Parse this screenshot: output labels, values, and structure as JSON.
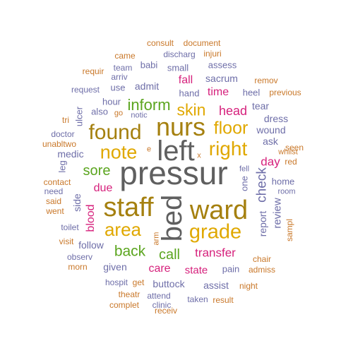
{
  "palette": {
    "gray": "#5f5f5f",
    "brown": "#a5800f",
    "gold": "#e0a800",
    "green": "#5ba51f",
    "magenta": "#d6217c",
    "slate": "#6e6ea8",
    "orange": "#c9782a"
  },
  "words": [
    {
      "text": "pressur",
      "color": "gray"
    },
    {
      "text": "left",
      "color": "gray"
    },
    {
      "text": "bed",
      "color": "gray"
    },
    {
      "text": "staff",
      "color": "brown"
    },
    {
      "text": "ward",
      "color": "brown"
    },
    {
      "text": "nurs",
      "color": "brown"
    },
    {
      "text": "found",
      "color": "brown"
    },
    {
      "text": "grade",
      "color": "gold"
    },
    {
      "text": "right",
      "color": "gold"
    },
    {
      "text": "note",
      "color": "gold"
    },
    {
      "text": "area",
      "color": "gold"
    },
    {
      "text": "floor",
      "color": "gold"
    },
    {
      "text": "skin",
      "color": "gold"
    },
    {
      "text": "inform",
      "color": "green"
    },
    {
      "text": "sore",
      "color": "green"
    },
    {
      "text": "back",
      "color": "green"
    },
    {
      "text": "call",
      "color": "green"
    },
    {
      "text": "check",
      "color": "slate"
    },
    {
      "text": "head",
      "color": "magenta"
    },
    {
      "text": "time",
      "color": "magenta"
    },
    {
      "text": "fall",
      "color": "magenta"
    },
    {
      "text": "day",
      "color": "magenta"
    },
    {
      "text": "due",
      "color": "magenta"
    },
    {
      "text": "blood",
      "color": "magenta"
    },
    {
      "text": "transfer",
      "color": "magenta"
    },
    {
      "text": "care",
      "color": "magenta"
    },
    {
      "text": "state",
      "color": "magenta"
    },
    {
      "text": "review",
      "color": "slate"
    },
    {
      "text": "report",
      "color": "slate"
    },
    {
      "text": "sacrum",
      "color": "slate"
    },
    {
      "text": "admit",
      "color": "slate"
    },
    {
      "text": "hand",
      "color": "slate"
    },
    {
      "text": "wound",
      "color": "slate"
    },
    {
      "text": "ask",
      "color": "slate"
    },
    {
      "text": "dress",
      "color": "slate"
    },
    {
      "text": "heel",
      "color": "slate"
    },
    {
      "text": "tear",
      "color": "slate"
    },
    {
      "text": "assess",
      "color": "slate"
    },
    {
      "text": "small",
      "color": "slate"
    },
    {
      "text": "babi",
      "color": "slate"
    },
    {
      "text": "use",
      "color": "slate"
    },
    {
      "text": "hour",
      "color": "slate"
    },
    {
      "text": "also",
      "color": "slate"
    },
    {
      "text": "ulcer",
      "color": "slate"
    },
    {
      "text": "medic",
      "color": "slate"
    },
    {
      "text": "leg",
      "color": "slate"
    },
    {
      "text": "side",
      "color": "slate"
    },
    {
      "text": "follow",
      "color": "slate"
    },
    {
      "text": "given",
      "color": "slate"
    },
    {
      "text": "buttock",
      "color": "slate"
    },
    {
      "text": "assist",
      "color": "slate"
    },
    {
      "text": "pain",
      "color": "slate"
    },
    {
      "text": "home",
      "color": "slate"
    },
    {
      "text": "one",
      "color": "slate"
    },
    {
      "text": "team",
      "color": "slate"
    },
    {
      "text": "discharg",
      "color": "slate"
    },
    {
      "text": "request",
      "color": "slate"
    },
    {
      "text": "arriv",
      "color": "slate"
    },
    {
      "text": "notic",
      "color": "slate"
    },
    {
      "text": "doctor",
      "color": "slate"
    },
    {
      "text": "need",
      "color": "slate"
    },
    {
      "text": "toilet",
      "color": "slate"
    },
    {
      "text": "observ",
      "color": "slate"
    },
    {
      "text": "hospit",
      "color": "slate"
    },
    {
      "text": "attend",
      "color": "slate"
    },
    {
      "text": "taken",
      "color": "slate"
    },
    {
      "text": "clinic",
      "color": "slate"
    },
    {
      "text": "fell",
      "color": "slate"
    },
    {
      "text": "room",
      "color": "slate"
    },
    {
      "text": "consult",
      "color": "orange"
    },
    {
      "text": "document",
      "color": "orange"
    },
    {
      "text": "injuri",
      "color": "orange"
    },
    {
      "text": "came",
      "color": "orange"
    },
    {
      "text": "requir",
      "color": "orange"
    },
    {
      "text": "remov",
      "color": "orange"
    },
    {
      "text": "previous",
      "color": "orange"
    },
    {
      "text": "tri",
      "color": "orange"
    },
    {
      "text": "go",
      "color": "orange"
    },
    {
      "text": "unabltwo",
      "color": "orange"
    },
    {
      "text": "contact",
      "color": "orange"
    },
    {
      "text": "said",
      "color": "orange"
    },
    {
      "text": "went",
      "color": "orange"
    },
    {
      "text": "visit",
      "color": "orange"
    },
    {
      "text": "morn",
      "color": "orange"
    },
    {
      "text": "get",
      "color": "orange"
    },
    {
      "text": "theatr",
      "color": "orange"
    },
    {
      "text": "complet",
      "color": "orange"
    },
    {
      "text": "receiv",
      "color": "orange"
    },
    {
      "text": "result",
      "color": "orange"
    },
    {
      "text": "night",
      "color": "orange"
    },
    {
      "text": "admiss",
      "color": "orange"
    },
    {
      "text": "chair",
      "color": "orange"
    },
    {
      "text": "sampl",
      "color": "orange"
    },
    {
      "text": "red",
      "color": "orange"
    },
    {
      "text": "seen",
      "color": "orange"
    },
    {
      "text": "whilst",
      "color": "orange"
    },
    {
      "text": "e",
      "color": "orange"
    },
    {
      "text": "x",
      "color": "orange"
    },
    {
      "text": "arm",
      "color": "orange"
    }
  ]
}
